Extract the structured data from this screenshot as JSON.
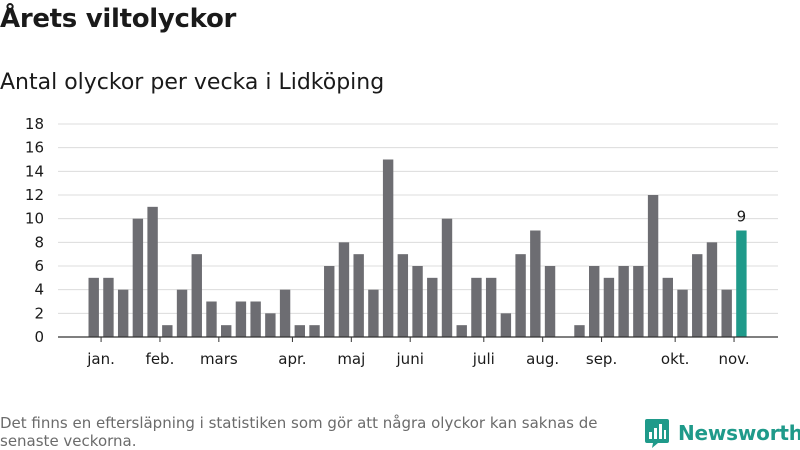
{
  "header": {
    "title": "Årets viltolyckor",
    "subtitle": "Antal olyckor per vecka i Lidköping"
  },
  "chart_data": {
    "type": "bar",
    "title": "Årets viltolyckor",
    "subtitle": "Antal olyckor per vecka i Lidköping",
    "xlabel": "",
    "ylabel": "",
    "ylim": [
      0,
      18
    ],
    "yticks": [
      0,
      2,
      4,
      6,
      8,
      10,
      12,
      14,
      16,
      18
    ],
    "grid": true,
    "legend": "none",
    "weeks": [
      1,
      2,
      3,
      4,
      5,
      6,
      7,
      8,
      9,
      10,
      11,
      12,
      13,
      14,
      15,
      16,
      17,
      18,
      19,
      20,
      21,
      22,
      23,
      24,
      25,
      26,
      27,
      28,
      29,
      30,
      31,
      32,
      33,
      34,
      35,
      36,
      37,
      38,
      39,
      40,
      41,
      42,
      43,
      44,
      45,
      46
    ],
    "values": [
      0,
      5,
      5,
      4,
      10,
      11,
      1,
      4,
      7,
      3,
      1,
      3,
      3,
      2,
      4,
      1,
      1,
      6,
      8,
      7,
      4,
      15,
      7,
      6,
      5,
      10,
      1,
      5,
      5,
      2,
      7,
      9,
      6,
      0,
      1,
      6,
      5,
      6,
      6,
      12,
      5,
      4,
      7,
      8,
      4,
      9
    ],
    "month_labels": [
      {
        "label": "jan.",
        "week": 2.5
      },
      {
        "label": "feb.",
        "week": 6.5
      },
      {
        "label": "mars",
        "week": 10.5
      },
      {
        "label": "apr.",
        "week": 15.5
      },
      {
        "label": "maj",
        "week": 19.5
      },
      {
        "label": "juni",
        "week": 23.5
      },
      {
        "label": "juli",
        "week": 28.5
      },
      {
        "label": "aug.",
        "week": 32.5
      },
      {
        "label": "sep.",
        "week": 36.5
      },
      {
        "label": "okt.",
        "week": 41.5
      },
      {
        "label": "nov.",
        "week": 45.5
      }
    ],
    "highlight": {
      "week": 46,
      "value": 9,
      "label": "9"
    },
    "colors": {
      "bar": "#6d6d72",
      "highlight": "#1f9a8a",
      "grid": "#dcdcdc",
      "axis": "#333333"
    }
  },
  "footer": {
    "note": "Det finns en eftersläpning i statistiken som gör att några olyckor kan saknas de senaste veckorna.",
    "brand": "Newsworthy",
    "brand_icon": "bar-chart-logo-icon"
  }
}
